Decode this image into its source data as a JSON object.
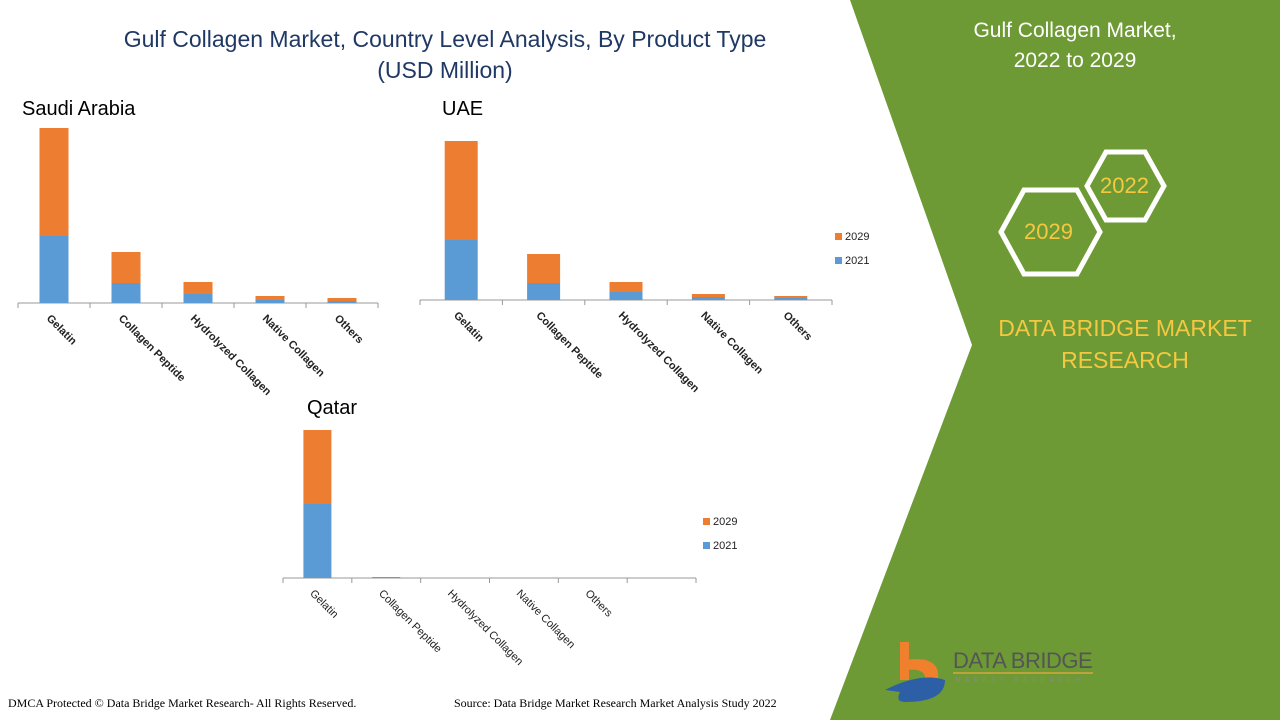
{
  "header": {
    "title_line1": "Gulf Collagen Market, Country Level Analysis, By Product Type",
    "title_line2": "(USD Million)"
  },
  "side_panel": {
    "title_line1": "Gulf Collagen Market,",
    "title_line2": "2022 to 2029",
    "hex1": "2022",
    "hex2": "2029",
    "brand_line1": "DATA BRIDGE MARKET",
    "brand_line2": "RESEARCH",
    "logo_text": "DATA BRIDGE",
    "logo_sub": "MARKET RESEARCH",
    "panel_color": "#6e9a35",
    "accent_color": "#f5c842"
  },
  "footer": {
    "left": "DMCA Protected © Data Bridge Market Research- All Rights Reserved.",
    "right": "Source: Data Bridge Market Research Market Analysis Study 2022"
  },
  "chart_data": [
    {
      "type": "bar",
      "stacked": true,
      "title": "Saudi Arabia",
      "categories": [
        "Gelatin",
        "Collagen Peptide",
        "Hydrolyzed Collagen",
        "Native Collagen",
        "Others"
      ],
      "series": [
        {
          "name": "2021",
          "color": "#5b9bd5",
          "values": [
            67,
            20,
            9,
            3,
            2
          ]
        },
        {
          "name": "2029",
          "color": "#ed7d31",
          "values": [
            108,
            31,
            12,
            4,
            3
          ]
        }
      ],
      "legend": "none"
    },
    {
      "type": "bar",
      "stacked": true,
      "title": "UAE",
      "categories": [
        "Gelatin",
        "Collagen Peptide",
        "Hydrolyzed Collagen",
        "Native Collagen",
        "Others"
      ],
      "series": [
        {
          "name": "2021",
          "color": "#5b9bd5",
          "values": [
            60,
            17,
            8,
            3,
            2
          ]
        },
        {
          "name": "2029",
          "color": "#ed7d31",
          "values": [
            99,
            29,
            10,
            3,
            2
          ]
        }
      ],
      "legend": "right"
    },
    {
      "type": "bar",
      "stacked": true,
      "title": "Qatar",
      "categories": [
        "Gelatin",
        "Collagen Peptide",
        "Hydrolyzed Collagen",
        "Native Collagen",
        "Others"
      ],
      "series": [
        {
          "name": "2021",
          "color": "#5b9bd5",
          "values": [
            74,
            0.5,
            0,
            0,
            0
          ]
        },
        {
          "name": "2029",
          "color": "#ed7d31",
          "values": [
            74,
            0.5,
            0,
            0,
            0
          ]
        }
      ],
      "legend": "right"
    }
  ]
}
